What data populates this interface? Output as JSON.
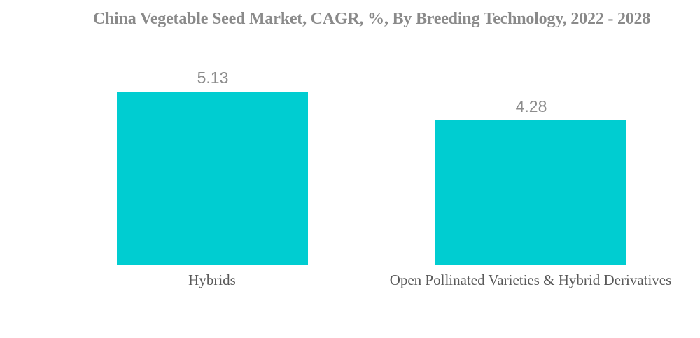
{
  "page": {
    "background_color": "#FFFFFF"
  },
  "chart_data": {
    "type": "bar",
    "title": "China Vegetable Seed Market, CAGR, %, By Breeding Technology, 2022 - 2028",
    "categories": [
      "Hybrids",
      "Open Pollinated Varieties & Hybrid Derivatives"
    ],
    "values": [
      5.13,
      4.28
    ],
    "value_labels": [
      "5.13",
      "4.28"
    ],
    "xlabel": "",
    "ylabel": "",
    "ylim": [
      0,
      5.13
    ],
    "grid": false,
    "legend": "none",
    "axes_visible": false,
    "bar_color": "#00CDD1",
    "title_color": "#8A8A8A",
    "value_label_color": "#8C8C8C",
    "category_label_color": "#595959"
  }
}
